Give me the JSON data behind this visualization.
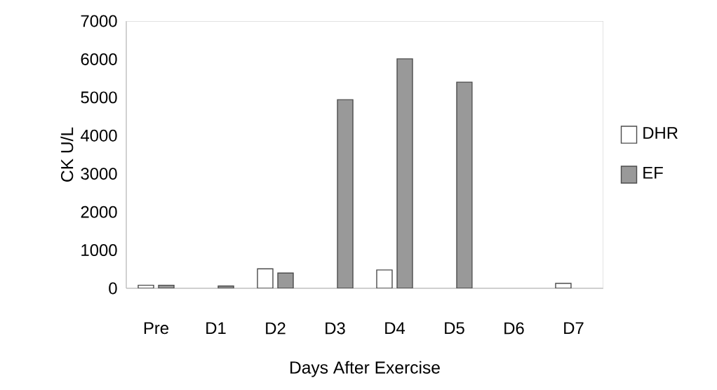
{
  "chart_data": {
    "type": "bar",
    "xlabel": "Days After Exercise",
    "ylabel": "CK U/L",
    "categories": [
      "Pre",
      "D1",
      "D2",
      "D3",
      "D4",
      "D5",
      "D6",
      "D7"
    ],
    "series": [
      {
        "name": "DHR",
        "color": "#ffffff",
        "values": [
          80,
          null,
          510,
          null,
          480,
          null,
          null,
          130
        ]
      },
      {
        "name": "EF",
        "color": "#999999",
        "values": [
          80,
          60,
          400,
          4940,
          6010,
          5400,
          null,
          null
        ]
      }
    ],
    "ylim": [
      0,
      7000
    ],
    "yticks": [
      0,
      1000,
      2000,
      3000,
      4000,
      5000,
      6000,
      7000
    ],
    "grid": false,
    "legend": "right"
  }
}
